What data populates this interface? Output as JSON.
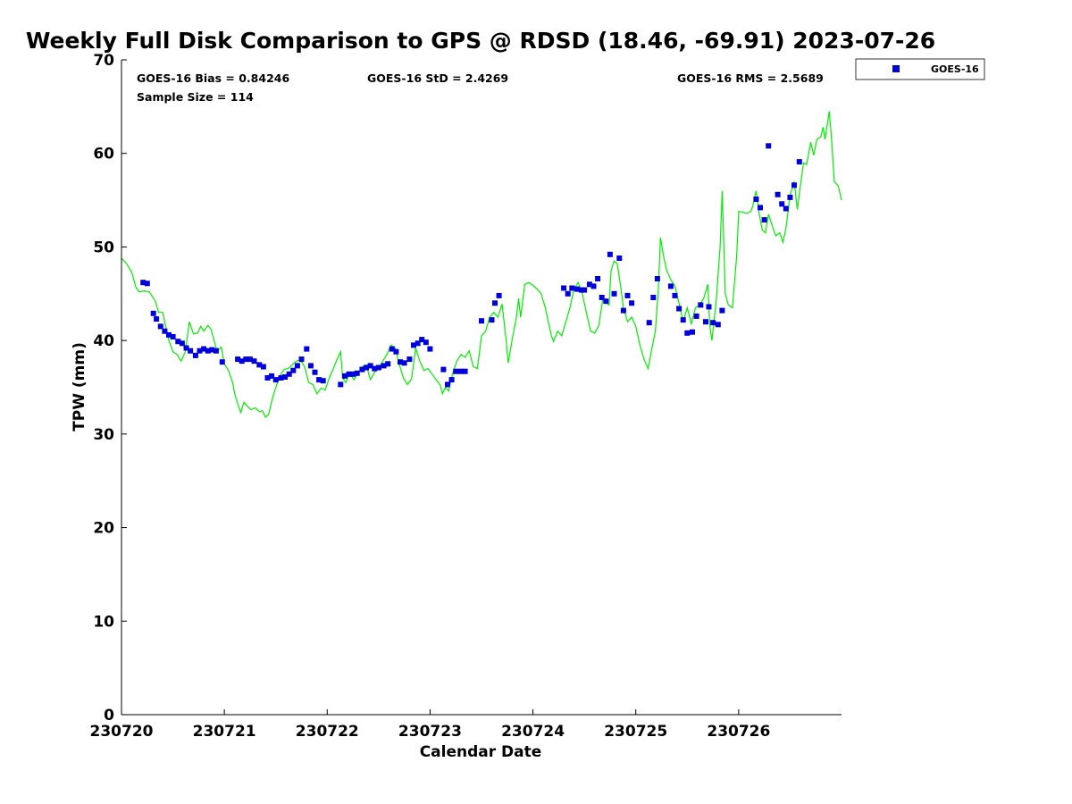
{
  "chart_data": {
    "type": "scatter",
    "title": "Weekly Full Disk Comparison to GPS @ RDSD (18.46, -69.91) 2023-07-26",
    "xlabel": "Calendar Date",
    "ylabel": "TPW (mm)",
    "xlim": [
      0,
      7
    ],
    "ylim": [
      0,
      70
    ],
    "x_ticks": [
      0,
      1,
      2,
      3,
      4,
      5,
      6
    ],
    "x_tick_labels": [
      "230720",
      "230721",
      "230722",
      "230723",
      "230724",
      "230725",
      "230726"
    ],
    "y_ticks": [
      0,
      10,
      20,
      30,
      40,
      50,
      60,
      70
    ],
    "grid": false,
    "legend_position": "top-right",
    "stats": {
      "bias": "GOES-16 Bias = 0.84246",
      "std": "GOES-16 StD = 2.4269",
      "rms": "GOES-16 RMS = 2.5689",
      "sample": "Sample Size = 114"
    },
    "colors": {
      "goes": "#0000dd",
      "gps": "#00ee00"
    },
    "series": [
      {
        "name": "GOES-16",
        "kind": "scatter",
        "points": [
          [
            0.21,
            46.2
          ],
          [
            0.25,
            46.1
          ],
          [
            0.31,
            42.9
          ],
          [
            0.34,
            42.3
          ],
          [
            0.38,
            41.5
          ],
          [
            0.42,
            41.0
          ],
          [
            0.46,
            40.6
          ],
          [
            0.5,
            40.4
          ],
          [
            0.55,
            39.9
          ],
          [
            0.59,
            39.7
          ],
          [
            0.63,
            39.2
          ],
          [
            0.67,
            38.9
          ],
          [
            0.72,
            38.4
          ],
          [
            0.76,
            38.9
          ],
          [
            0.8,
            39.1
          ],
          [
            0.84,
            38.9
          ],
          [
            0.88,
            39.0
          ],
          [
            0.92,
            38.9
          ],
          [
            0.98,
            37.7
          ],
          [
            1.13,
            38.0
          ],
          [
            1.17,
            37.8
          ],
          [
            1.21,
            38.0
          ],
          [
            1.25,
            38.0
          ],
          [
            1.29,
            37.8
          ],
          [
            1.34,
            37.4
          ],
          [
            1.38,
            37.2
          ],
          [
            1.42,
            36.0
          ],
          [
            1.46,
            36.2
          ],
          [
            1.5,
            35.8
          ],
          [
            1.55,
            36.0
          ],
          [
            1.59,
            36.1
          ],
          [
            1.63,
            36.4
          ],
          [
            1.67,
            36.8
          ],
          [
            1.71,
            37.3
          ],
          [
            1.75,
            38.0
          ],
          [
            1.8,
            39.1
          ],
          [
            1.84,
            37.3
          ],
          [
            1.88,
            36.6
          ],
          [
            1.92,
            35.8
          ],
          [
            1.96,
            35.7
          ],
          [
            2.13,
            35.3
          ],
          [
            2.17,
            36.2
          ],
          [
            2.21,
            36.4
          ],
          [
            2.25,
            36.4
          ],
          [
            2.29,
            36.5
          ],
          [
            2.34,
            36.9
          ],
          [
            2.38,
            37.1
          ],
          [
            2.42,
            37.3
          ],
          [
            2.46,
            37.0
          ],
          [
            2.5,
            37.1
          ],
          [
            2.55,
            37.3
          ],
          [
            2.59,
            37.5
          ],
          [
            2.63,
            39.1
          ],
          [
            2.67,
            38.8
          ],
          [
            2.71,
            37.7
          ],
          [
            2.75,
            37.6
          ],
          [
            2.8,
            38.0
          ],
          [
            2.84,
            39.5
          ],
          [
            2.88,
            39.7
          ],
          [
            2.92,
            40.1
          ],
          [
            2.96,
            39.8
          ],
          [
            3.0,
            39.1
          ],
          [
            3.13,
            36.9
          ],
          [
            3.17,
            35.3
          ],
          [
            3.21,
            35.8
          ],
          [
            3.25,
            36.7
          ],
          [
            3.3,
            36.7
          ],
          [
            3.34,
            36.7
          ],
          [
            3.5,
            42.1
          ],
          [
            3.6,
            42.2
          ],
          [
            3.63,
            44.0
          ],
          [
            3.67,
            44.8
          ],
          [
            4.3,
            45.6
          ],
          [
            4.34,
            45.0
          ],
          [
            4.38,
            45.6
          ],
          [
            4.43,
            45.5
          ],
          [
            4.47,
            45.4
          ],
          [
            4.5,
            45.4
          ],
          [
            4.55,
            46.0
          ],
          [
            4.59,
            45.8
          ],
          [
            4.63,
            46.6
          ],
          [
            4.67,
            44.6
          ],
          [
            4.71,
            44.2
          ],
          [
            4.75,
            49.2
          ],
          [
            4.79,
            45.0
          ],
          [
            4.84,
            48.8
          ],
          [
            4.88,
            43.2
          ],
          [
            4.92,
            44.8
          ],
          [
            4.96,
            44.0
          ],
          [
            5.13,
            41.9
          ],
          [
            5.17,
            44.6
          ],
          [
            5.21,
            46.6
          ],
          [
            5.34,
            45.8
          ],
          [
            5.38,
            44.8
          ],
          [
            5.42,
            43.4
          ],
          [
            5.46,
            42.2
          ],
          [
            5.5,
            40.8
          ],
          [
            5.55,
            40.9
          ],
          [
            5.59,
            42.6
          ],
          [
            5.63,
            43.8
          ],
          [
            5.68,
            42.0
          ],
          [
            5.71,
            43.6
          ],
          [
            5.75,
            41.9
          ],
          [
            5.8,
            41.7
          ],
          [
            5.84,
            43.2
          ],
          [
            6.17,
            55.1
          ],
          [
            6.21,
            54.2
          ],
          [
            6.25,
            52.9
          ],
          [
            6.29,
            60.8
          ],
          [
            6.38,
            55.6
          ],
          [
            6.42,
            54.6
          ],
          [
            6.46,
            54.1
          ],
          [
            6.5,
            55.3
          ],
          [
            6.54,
            56.6
          ],
          [
            6.59,
            59.1
          ]
        ]
      },
      {
        "kind": "line",
        "points": [
          [
            0.0,
            48.8
          ],
          [
            0.05,
            48.2
          ],
          [
            0.1,
            47.3
          ],
          [
            0.14,
            45.7
          ],
          [
            0.17,
            45.2
          ],
          [
            0.22,
            45.3
          ],
          [
            0.27,
            45.2
          ],
          [
            0.3,
            44.7
          ],
          [
            0.33,
            44.2
          ],
          [
            0.36,
            43.0
          ],
          [
            0.4,
            43.0
          ],
          [
            0.43,
            41.5
          ],
          [
            0.46,
            40.0
          ],
          [
            0.5,
            38.8
          ],
          [
            0.54,
            38.5
          ],
          [
            0.58,
            37.8
          ],
          [
            0.62,
            38.8
          ],
          [
            0.66,
            42.0
          ],
          [
            0.7,
            40.7
          ],
          [
            0.74,
            40.8
          ],
          [
            0.77,
            41.5
          ],
          [
            0.8,
            41.0
          ],
          [
            0.84,
            41.6
          ],
          [
            0.87,
            41.2
          ],
          [
            0.9,
            40.0
          ],
          [
            0.93,
            38.8
          ],
          [
            0.97,
            39.3
          ],
          [
            1.0,
            37.5
          ],
          [
            1.04,
            36.8
          ],
          [
            1.08,
            35.5
          ],
          [
            1.1,
            34.3
          ],
          [
            1.13,
            33.2
          ],
          [
            1.16,
            32.3
          ],
          [
            1.19,
            33.4
          ],
          [
            1.22,
            33.0
          ],
          [
            1.26,
            32.6
          ],
          [
            1.3,
            32.8
          ],
          [
            1.34,
            32.4
          ],
          [
            1.37,
            32.5
          ],
          [
            1.4,
            31.8
          ],
          [
            1.43,
            32.1
          ],
          [
            1.46,
            33.5
          ],
          [
            1.5,
            35.0
          ],
          [
            1.54,
            36.2
          ],
          [
            1.58,
            36.9
          ],
          [
            1.62,
            37.0
          ],
          [
            1.66,
            37.4
          ],
          [
            1.7,
            37.8
          ],
          [
            1.74,
            37.9
          ],
          [
            1.78,
            37.2
          ],
          [
            1.82,
            35.5
          ],
          [
            1.86,
            35.3
          ],
          [
            1.9,
            34.3
          ],
          [
            1.94,
            34.9
          ],
          [
            1.98,
            34.7
          ],
          [
            2.02,
            36.0
          ],
          [
            2.06,
            37.0
          ],
          [
            2.1,
            38.1
          ],
          [
            2.13,
            38.8
          ],
          [
            2.15,
            36.0
          ],
          [
            2.18,
            35.5
          ],
          [
            2.22,
            36.5
          ],
          [
            2.26,
            35.8
          ],
          [
            2.3,
            36.5
          ],
          [
            2.34,
            37.2
          ],
          [
            2.38,
            37.4
          ],
          [
            2.42,
            35.8
          ],
          [
            2.46,
            36.6
          ],
          [
            2.5,
            37.1
          ],
          [
            2.54,
            37.8
          ],
          [
            2.58,
            38.5
          ],
          [
            2.62,
            39.5
          ],
          [
            2.66,
            39.2
          ],
          [
            2.7,
            37.5
          ],
          [
            2.74,
            36.0
          ],
          [
            2.78,
            35.3
          ],
          [
            2.82,
            35.9
          ],
          [
            2.86,
            39.2
          ],
          [
            2.9,
            37.8
          ],
          [
            2.94,
            36.8
          ],
          [
            2.98,
            37.0
          ],
          [
            3.02,
            36.4
          ],
          [
            3.06,
            35.8
          ],
          [
            3.1,
            35.2
          ],
          [
            3.12,
            34.3
          ],
          [
            3.15,
            35.0
          ],
          [
            3.18,
            34.6
          ],
          [
            3.22,
            36.5
          ],
          [
            3.26,
            37.8
          ],
          [
            3.3,
            38.5
          ],
          [
            3.34,
            38.2
          ],
          [
            3.38,
            38.9
          ],
          [
            3.42,
            37.2
          ],
          [
            3.46,
            37.0
          ],
          [
            3.5,
            40.5
          ],
          [
            3.54,
            41.0
          ],
          [
            3.58,
            42.5
          ],
          [
            3.62,
            43.0
          ],
          [
            3.66,
            42.5
          ],
          [
            3.7,
            43.9
          ],
          [
            3.74,
            40.0
          ],
          [
            3.76,
            37.6
          ],
          [
            3.8,
            40.2
          ],
          [
            3.84,
            42.5
          ],
          [
            3.86,
            44.5
          ],
          [
            3.88,
            42.5
          ],
          [
            3.92,
            46.0
          ],
          [
            3.96,
            46.2
          ],
          [
            4.0,
            45.9
          ],
          [
            4.04,
            45.5
          ],
          [
            4.08,
            45.0
          ],
          [
            4.12,
            43.5
          ],
          [
            4.15,
            42.0
          ],
          [
            4.18,
            40.5
          ],
          [
            4.2,
            39.9
          ],
          [
            4.24,
            41.0
          ],
          [
            4.28,
            40.5
          ],
          [
            4.32,
            42.0
          ],
          [
            4.36,
            43.5
          ],
          [
            4.4,
            45.5
          ],
          [
            4.44,
            46.2
          ],
          [
            4.48,
            45.0
          ],
          [
            4.52,
            43.0
          ],
          [
            4.56,
            41.0
          ],
          [
            4.6,
            40.8
          ],
          [
            4.64,
            41.6
          ],
          [
            4.68,
            44.5
          ],
          [
            4.72,
            44.0
          ],
          [
            4.74,
            43.8
          ],
          [
            4.76,
            47.5
          ],
          [
            4.79,
            48.5
          ],
          [
            4.82,
            48.2
          ],
          [
            4.85,
            46.0
          ],
          [
            4.88,
            43.5
          ],
          [
            4.92,
            42.0
          ],
          [
            4.96,
            42.5
          ],
          [
            5.0,
            41.5
          ],
          [
            5.04,
            39.5
          ],
          [
            5.08,
            38.0
          ],
          [
            5.12,
            37.0
          ],
          [
            5.15,
            38.8
          ],
          [
            5.19,
            41.0
          ],
          [
            5.22,
            45.5
          ],
          [
            5.24,
            51.0
          ],
          [
            5.27,
            49.0
          ],
          [
            5.3,
            47.5
          ],
          [
            5.34,
            46.5
          ],
          [
            5.38,
            45.8
          ],
          [
            5.42,
            44.0
          ],
          [
            5.46,
            42.0
          ],
          [
            5.5,
            43.5
          ],
          [
            5.54,
            41.8
          ],
          [
            5.58,
            43.5
          ],
          [
            5.62,
            43.8
          ],
          [
            5.66,
            44.5
          ],
          [
            5.7,
            46.0
          ],
          [
            5.72,
            41.5
          ],
          [
            5.74,
            40.0
          ],
          [
            5.78,
            44.0
          ],
          [
            5.82,
            50.0
          ],
          [
            5.84,
            56.0
          ],
          [
            5.87,
            45.0
          ],
          [
            5.9,
            43.8
          ],
          [
            5.94,
            43.5
          ],
          [
            5.98,
            49.0
          ],
          [
            6.0,
            53.8
          ],
          [
            6.04,
            53.7
          ],
          [
            6.08,
            53.6
          ],
          [
            6.12,
            53.8
          ],
          [
            6.14,
            54.5
          ],
          [
            6.17,
            56.0
          ],
          [
            6.2,
            53.5
          ],
          [
            6.23,
            51.8
          ],
          [
            6.26,
            51.5
          ],
          [
            6.29,
            53.5
          ],
          [
            6.32,
            52.5
          ],
          [
            6.36,
            51.2
          ],
          [
            6.4,
            51.5
          ],
          [
            6.43,
            50.5
          ],
          [
            6.46,
            52.0
          ],
          [
            6.5,
            55.5
          ],
          [
            6.54,
            57.0
          ],
          [
            6.57,
            54.0
          ],
          [
            6.6,
            56.5
          ],
          [
            6.63,
            59.0
          ],
          [
            6.66,
            58.8
          ],
          [
            6.7,
            61.2
          ],
          [
            6.73,
            59.8
          ],
          [
            6.76,
            61.5
          ],
          [
            6.8,
            61.8
          ],
          [
            6.82,
            62.8
          ],
          [
            6.84,
            61.5
          ],
          [
            6.88,
            64.5
          ],
          [
            6.9,
            62.0
          ],
          [
            6.93,
            57.0
          ],
          [
            6.97,
            56.5
          ],
          [
            7.0,
            55.0
          ]
        ]
      }
    ]
  }
}
